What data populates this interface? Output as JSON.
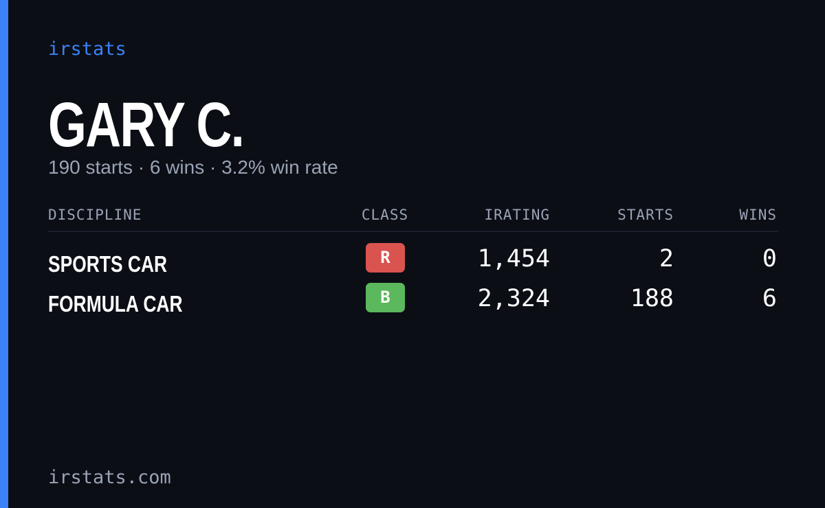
{
  "brand": "irstats",
  "driver": {
    "name": "GARY C.",
    "summary": "190 starts · 6 wins · 3.2% win rate"
  },
  "table": {
    "headers": [
      "DISCIPLINE",
      "CLASS",
      "IRATING",
      "STARTS",
      "WINS"
    ],
    "rows": [
      [
        "SPORTS CAR",
        "R",
        "1,454",
        "2",
        "0"
      ],
      [
        "FORMULA CAR",
        "B",
        "2,324",
        "188",
        "6"
      ]
    ],
    "class_colors": [
      "#d9534f",
      "#5cb85c"
    ]
  },
  "footer": "irstats.com"
}
